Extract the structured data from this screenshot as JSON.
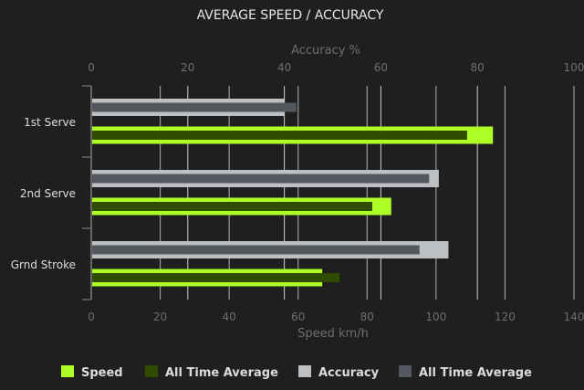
{
  "chart_data": {
    "type": "bar",
    "orientation": "horizontal",
    "title": "AVERAGE SPEED / ACCURACY",
    "categories": [
      "1st Serve",
      "2nd Serve",
      "Grnd Stroke"
    ],
    "x_bottom": {
      "label": "Speed km/h",
      "range": [
        0,
        140
      ],
      "ticks": [
        0,
        20,
        40,
        60,
        80,
        100,
        120,
        140
      ]
    },
    "x_top": {
      "label": "Accuracy %",
      "range": [
        0,
        100
      ],
      "ticks": [
        0,
        20,
        40,
        60,
        80,
        100
      ]
    },
    "series": [
      {
        "name": "Speed",
        "axis": "bottom",
        "color": "#adff25",
        "values": [
          116.5,
          87,
          67
        ]
      },
      {
        "name": "All Time Average",
        "axis": "bottom",
        "color": "#2f4c00",
        "values": [
          109,
          81.5,
          72
        ]
      },
      {
        "name": "Accuracy",
        "axis": "top",
        "color": "#bcc0c2",
        "values": [
          40,
          72,
          74
        ]
      },
      {
        "name": "All Time Average",
        "axis": "top",
        "color": "#53575e",
        "values": [
          42.5,
          70,
          68
        ]
      }
    ],
    "grid": true,
    "legend": "bottom"
  }
}
